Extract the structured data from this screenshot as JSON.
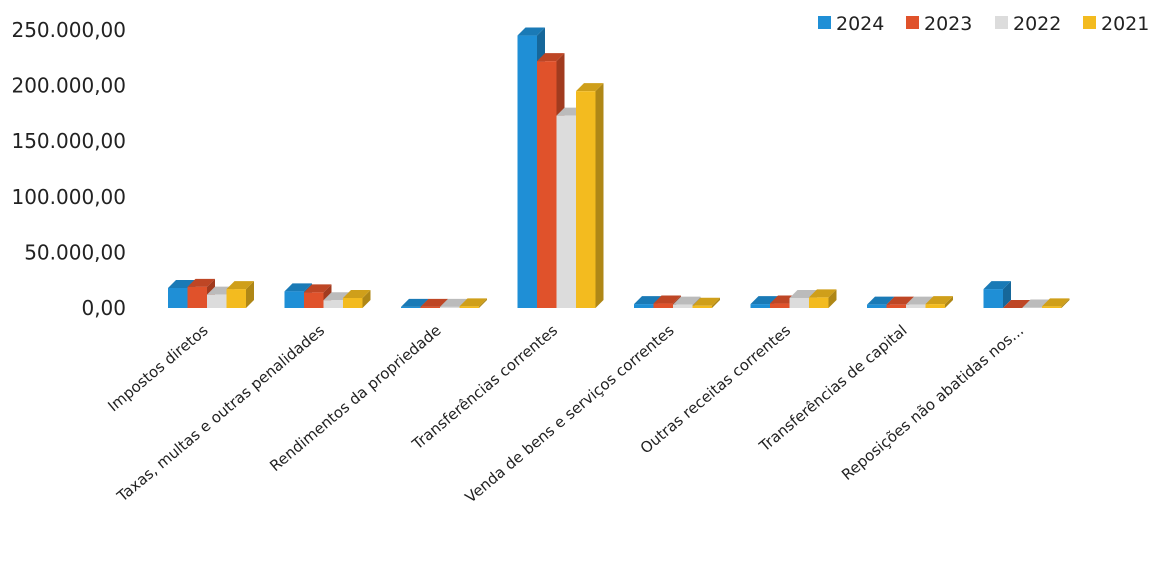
{
  "chart_data": {
    "type": "bar",
    "categories": [
      "Impostos diretos",
      "Taxas, multas e outras penalidades",
      "Rendimentos da propriedade",
      "Transferências correntes",
      "Venda de bens e serviços correntes",
      "Outras receitas correntes",
      "Transferências de capital",
      "Reposições não abatidas nos..."
    ],
    "series": [
      {
        "name": "2024",
        "color": "#1f8fd6",
        "values": [
          18000,
          15000,
          1000,
          245000,
          3500,
          3500,
          3000,
          17000
        ]
      },
      {
        "name": "2023",
        "color": "#e0522b",
        "values": [
          19000,
          14000,
          1000,
          222000,
          4000,
          4000,
          3000,
          0
        ]
      },
      {
        "name": "2022",
        "color": "#dcdcdc",
        "values": [
          12000,
          7000,
          1000,
          173000,
          3000,
          9000,
          3000,
          500
        ]
      },
      {
        "name": "2021",
        "color": "#f3bb1f",
        "values": [
          17000,
          9000,
          1500,
          195000,
          2000,
          9500,
          3500,
          1500
        ]
      }
    ],
    "y_ticks": [
      "0,00",
      "50.000,00",
      "100.000,00",
      "150.000,00",
      "200.000,00",
      "250.000,00"
    ],
    "ylim": [
      0,
      250000
    ],
    "legend_position": "top-right",
    "grid": false
  }
}
